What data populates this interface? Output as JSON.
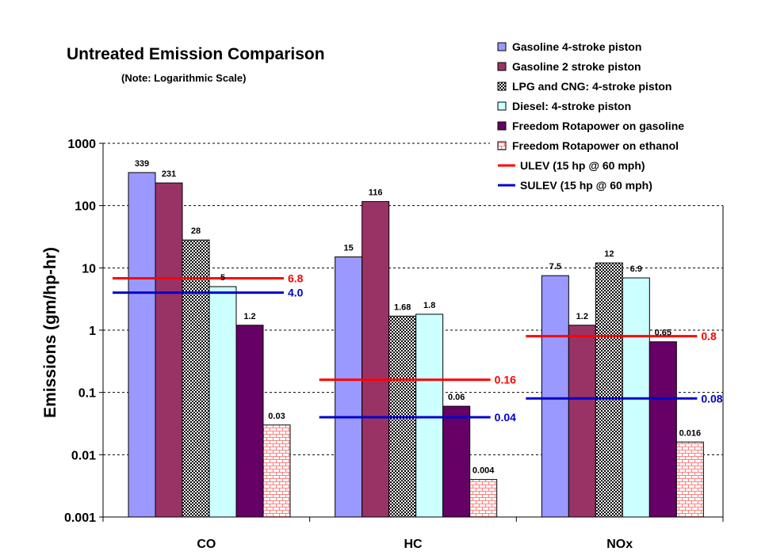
{
  "chart_data": {
    "type": "bar",
    "title": "Untreated Emission Comparison",
    "subtitle": "(Note: Logarithmic Scale)",
    "ylabel": "Emissions (gm/hp-hr)",
    "xlabel": "",
    "yscale": "log",
    "ylim": [
      0.001,
      1000
    ],
    "yticks": [
      "0.001",
      "0.01",
      "0.1",
      "1",
      "10",
      "100",
      "1000"
    ],
    "grid": "horizontal dashed",
    "legend_position": "top-right",
    "categories": [
      "CO",
      "HC",
      "NOx"
    ],
    "series": [
      {
        "name": "Gasoline 4-stroke piston",
        "color": "#9999ff",
        "pattern": "solid",
        "values": [
          339,
          15,
          7.5
        ],
        "labels": [
          "339",
          "15",
          "7.5"
        ]
      },
      {
        "name": "Gasoline 2 stroke piston",
        "color": "#993366",
        "pattern": "solid",
        "values": [
          231,
          116,
          1.2
        ],
        "labels": [
          "231",
          "116",
          "1.2"
        ]
      },
      {
        "name": "LPG and CNG: 4-stroke piston",
        "color": "#000000",
        "pattern": "checker",
        "values": [
          28,
          1.68,
          12
        ],
        "labels": [
          "28",
          "1.68",
          "12"
        ]
      },
      {
        "name": "Diesel: 4-stroke piston",
        "color": "#ccffff",
        "pattern": "solid",
        "values": [
          5,
          1.8,
          6.9
        ],
        "labels": [
          "5",
          "1.8",
          "6.9"
        ]
      },
      {
        "name": "Freedom Rotapower on gasoline",
        "color": "#660066",
        "pattern": "solid",
        "values": [
          1.2,
          0.06,
          0.65
        ],
        "labels": [
          "1.2",
          "0.06",
          "0.65"
        ]
      },
      {
        "name": "Freedom Rotapower on ethanol",
        "color": "#ff8080",
        "pattern": "brick",
        "values": [
          0.03,
          0.004,
          0.016
        ],
        "labels": [
          "0.03",
          "0.004",
          "0.016"
        ]
      }
    ],
    "reference_lines": [
      {
        "name": "ULEV (15 hp @ 60 mph)",
        "color": "#ff0000",
        "values": [
          6.8,
          0.16,
          0.8
        ],
        "labels": [
          "6.8",
          "0.16",
          "0.8"
        ]
      },
      {
        "name": "SULEV (15 hp @ 60 mph)",
        "color": "#0000cc",
        "values": [
          4.0,
          0.04,
          0.08
        ],
        "labels": [
          "4.0",
          "0.04",
          "0.08"
        ]
      }
    ]
  }
}
